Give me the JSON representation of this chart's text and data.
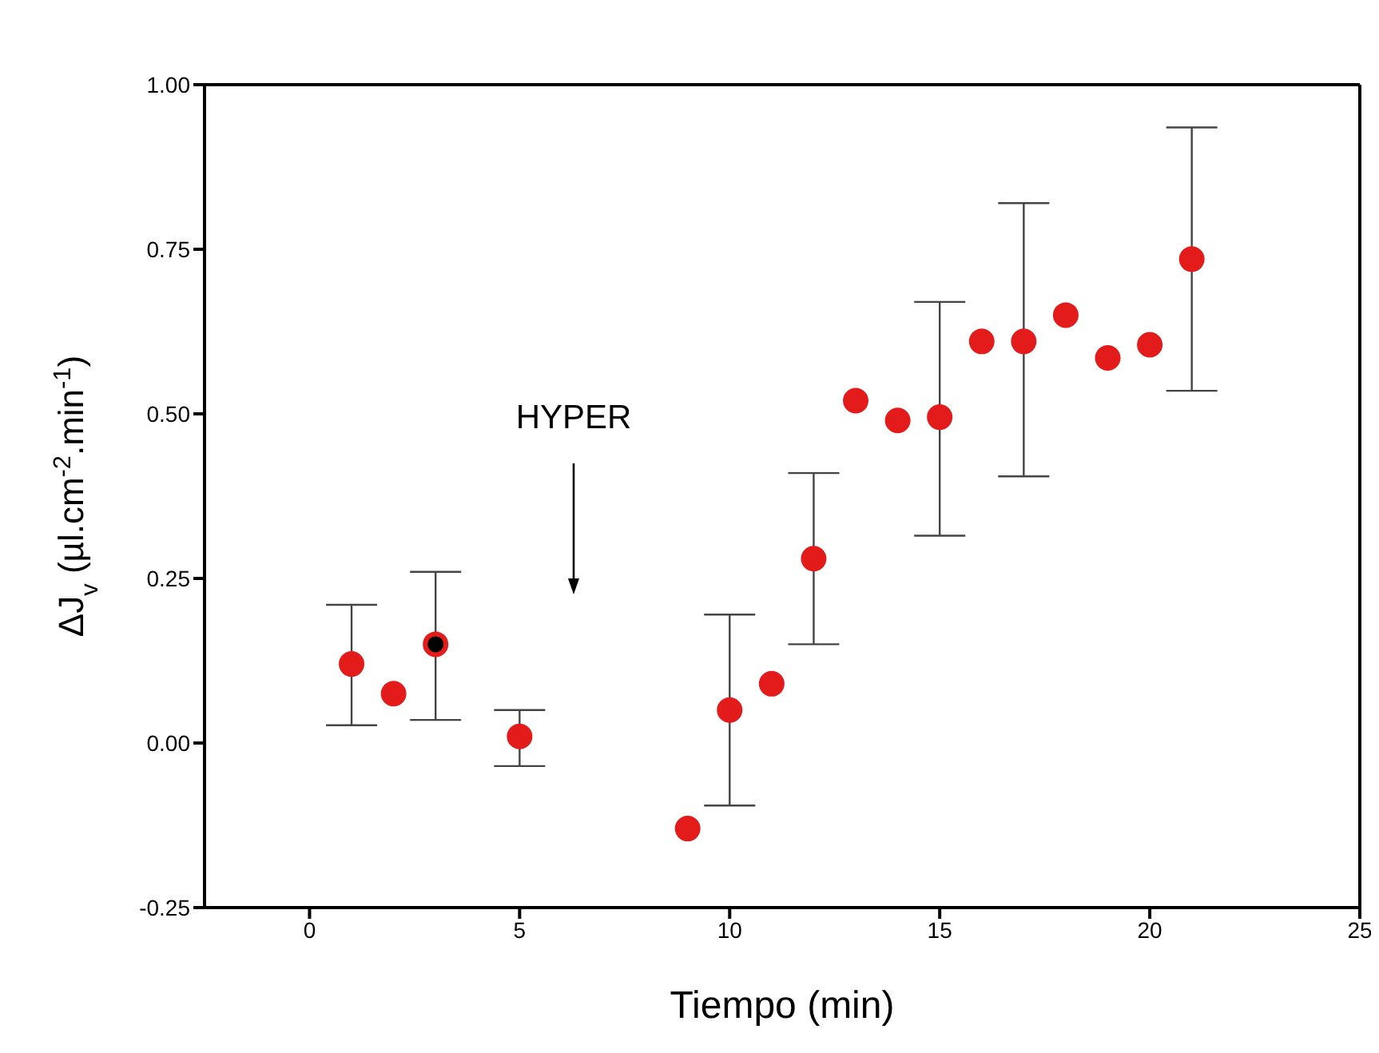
{
  "chart_data": {
    "type": "scatter",
    "xlabel": "Tiempo (min)",
    "ylabel": "ΔJ$_{v}$ (µl.cm$^{-2}$.min$^{-1}$)",
    "x": [
      1,
      2,
      3,
      5,
      9,
      10,
      11,
      12,
      13,
      14,
      15,
      16,
      17,
      18,
      19,
      20,
      21
    ],
    "series": [
      {
        "color": "#e31b1b",
        "values": [
          0.12,
          0.075,
          0.15,
          0.01,
          -0.13,
          0.05,
          0.09,
          0.28,
          0.52,
          0.49,
          0.495,
          0.61,
          0.61,
          0.65,
          0.585,
          0.605,
          0.735
        ],
        "colors": [
          "#e31b1b",
          "#e31b1b",
          "#000000",
          "#e31b1b",
          "#e31b1b",
          "#e31b1b",
          "#e31b1b",
          "#e31b1b",
          "#e31b1b",
          "#e31b1b",
          "#e31b1b",
          "#e31b1b",
          "#e31b1b",
          "#e31b1b",
          "#e31b1b",
          "#e31b1b",
          "#e31b1b"
        ],
        "errors": [
          [
            0.027,
            0.21
          ],
          null,
          [
            0.035,
            0.26
          ],
          [
            -0.035,
            0.05
          ],
          null,
          [
            -0.095,
            0.195
          ],
          null,
          [
            0.15,
            0.41
          ],
          null,
          null,
          [
            0.315,
            0.67
          ],
          null,
          [
            0.405,
            0.82
          ],
          null,
          null,
          null,
          [
            0.535,
            0.935
          ]
        ]
      }
    ],
    "xlim": [
      -2.5,
      25
    ],
    "xticks": [
      0,
      5,
      10,
      15,
      20,
      25
    ],
    "ylim": [
      -0.25,
      1.0
    ],
    "yticks": [
      {
        "value": -0.25,
        "label": "-0.25"
      },
      {
        "value": 0,
        "label": "0.00"
      },
      {
        "value": 0.25,
        "label": "0.25"
      },
      {
        "value": 0.5,
        "label": "0.50"
      },
      {
        "value": 0.75,
        "label": "0.75"
      },
      {
        "value": 1.0,
        "label": "1.00"
      }
    ],
    "annotations": [
      "HYPER"
    ],
    "marker": "circle",
    "grid": false,
    "legend": false
  }
}
